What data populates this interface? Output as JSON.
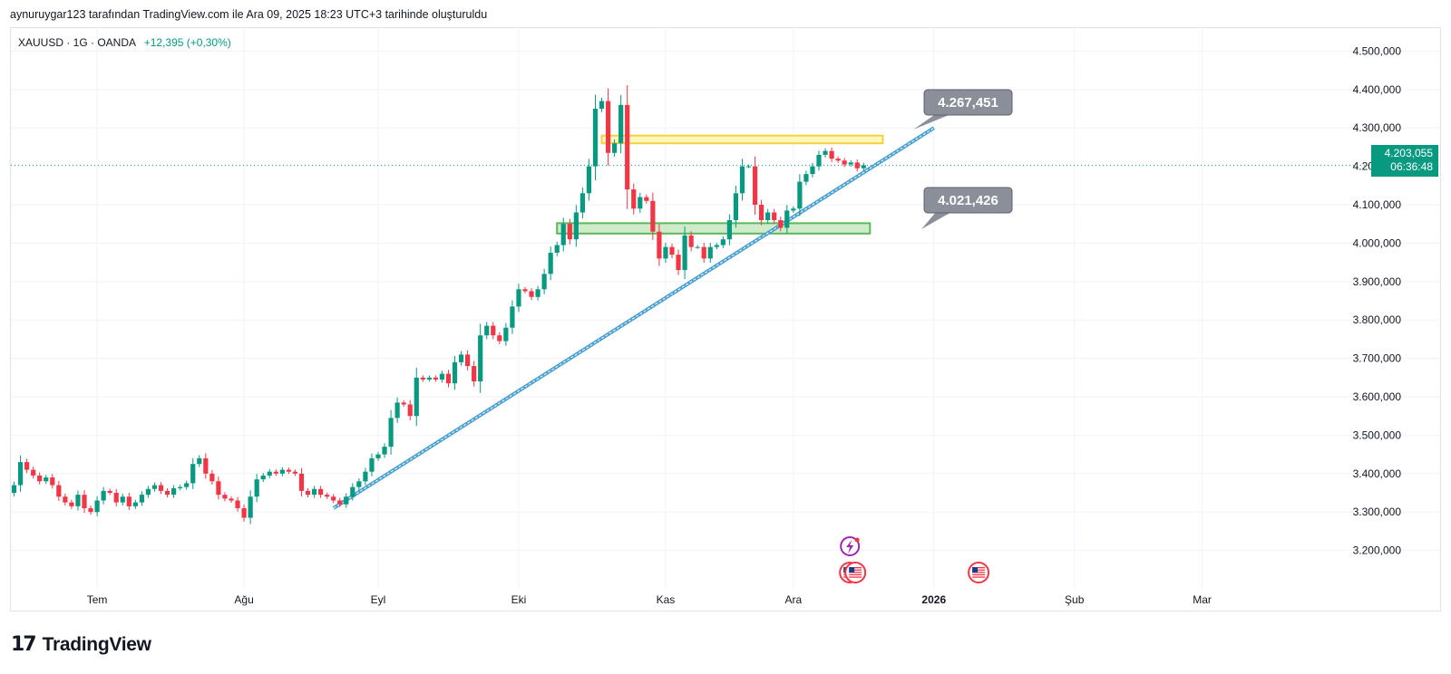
{
  "header": {
    "attribution": "aynuruygar123 tarafından TradingView.com ile Ara 09, 2025 18:23 UTC+3 tarihinde oluşturuldu"
  },
  "symbol": {
    "info": "XAUUSD · 1G · OANDA",
    "change": "+12,395 (+0,30%)"
  },
  "price_label": {
    "price": "4.203,055",
    "countdown": "06:36:48"
  },
  "logo": {
    "text": "TradingView",
    "icon": "tradingview-logo-icon"
  },
  "colors": {
    "up": "#089981",
    "down": "#f23645",
    "trendline": "#4a9fd1",
    "resistance_fill": "#fff6b3",
    "resistance_border": "#f2d33c",
    "support_fill": "#c8e8c0",
    "support_border": "#5bb85b",
    "callout": "#8b8f99"
  },
  "chart_data": {
    "type": "candlestick",
    "symbol": "XAUUSD",
    "interval": "1D",
    "ylim": [
      3100,
      4560
    ],
    "y_ticks": [
      4500,
      4400,
      4300,
      4200,
      4100,
      4000,
      3900,
      3800,
      3700,
      3600,
      3500,
      3400,
      3300,
      3200
    ],
    "y_tick_labels": [
      "4.500,000",
      "4.400,000",
      "4.300,000",
      "4.200,000",
      "4.100,000",
      "4.000,000",
      "3.900,000",
      "3.800,000",
      "3.700,000",
      "3.600,000",
      "3.500,000",
      "3.400,000",
      "3.300,000",
      "3.200,000"
    ],
    "x_ticks": [
      {
        "label": "Tem",
        "index": 13
      },
      {
        "label": "Ağu",
        "index": 36
      },
      {
        "label": "Eyl",
        "index": 57
      },
      {
        "label": "Eki",
        "index": 79
      },
      {
        "label": "Kas",
        "index": 102
      },
      {
        "label": "Ara",
        "index": 122
      },
      {
        "label": "2026",
        "index": 144
      },
      {
        "label": "Şub",
        "index": 166
      },
      {
        "label": "Mar",
        "index": 186
      }
    ],
    "num_slots": 207,
    "closes": [
      3370,
      3430,
      3410,
      3395,
      3380,
      3390,
      3370,
      3340,
      3325,
      3315,
      3345,
      3310,
      3300,
      3330,
      3355,
      3350,
      3325,
      3340,
      3315,
      3325,
      3345,
      3360,
      3370,
      3355,
      3345,
      3362,
      3365,
      3375,
      3425,
      3440,
      3400,
      3380,
      3345,
      3335,
      3330,
      3310,
      3285,
      3340,
      3385,
      3395,
      3405,
      3400,
      3410,
      3405,
      3400,
      3355,
      3345,
      3360,
      3345,
      3340,
      3330,
      3320,
      3340,
      3365,
      3380,
      3405,
      3440,
      3450,
      3470,
      3545,
      3585,
      3580,
      3550,
      3650,
      3645,
      3650,
      3645,
      3660,
      3635,
      3690,
      3710,
      3680,
      3640,
      3760,
      3785,
      3760,
      3745,
      3780,
      3835,
      3880,
      3875,
      3860,
      3880,
      3920,
      3975,
      3995,
      4050,
      4010,
      4080,
      4130,
      4200,
      4350,
      4370,
      4235,
      4260,
      4360,
      4140,
      4090,
      4120,
      4110,
      4030,
      3960,
      3990,
      3970,
      3930,
      4020,
      3990,
      3990,
      3960,
      3990,
      3995,
      4010,
      4060,
      4130,
      4200,
      4200,
      4100,
      4060,
      4080,
      4060,
      4040,
      4085,
      4090,
      4160,
      4180,
      4200,
      4230,
      4240,
      4220,
      4215,
      4205,
      4210,
      4195,
      4203
    ],
    "annotations": [
      {
        "type": "zone",
        "label": "resistance",
        "from": 4260,
        "to": 4280,
        "x_start_index": 92,
        "x_end_index": 136
      },
      {
        "type": "zone",
        "label": "support",
        "from": 4025,
        "to": 4052,
        "x_start_index": 85,
        "x_end_index": 134
      },
      {
        "type": "callout",
        "text": "4.267,451",
        "value": 4267.451
      },
      {
        "type": "callout",
        "text": "4.021,426",
        "value": 4021.426
      },
      {
        "type": "trendline",
        "from": {
          "index": 50,
          "price": 3310
        },
        "to": {
          "index": 144,
          "price": 4300
        }
      },
      {
        "type": "current_price_line",
        "value": 4203.055
      }
    ],
    "event_icons": [
      {
        "name": "dividend-bolt-icon",
        "index": 130
      },
      {
        "name": "us-flag-icon",
        "index": 130
      },
      {
        "name": "us-flag-icon",
        "index": 130.5
      },
      {
        "name": "us-flag-icon",
        "index": 151
      }
    ]
  }
}
